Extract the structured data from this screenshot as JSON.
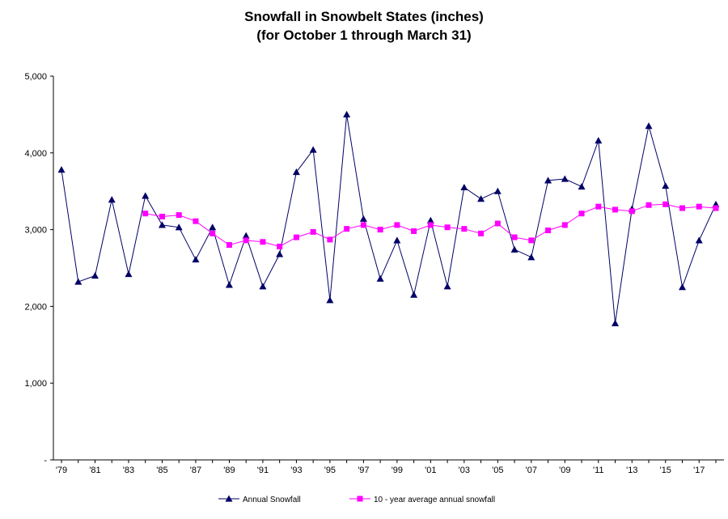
{
  "chart_data": {
    "type": "line",
    "title": "Snowfall in Snowbelt States (inches)",
    "subtitle": "(for October 1 through March 31)",
    "xlabel": "",
    "ylabel": "",
    "ylim": [
      0,
      5000
    ],
    "y_ticks": [
      {
        "value": 0,
        "label": "-"
      },
      {
        "value": 1000,
        "label": "1,000"
      },
      {
        "value": 2000,
        "label": "2,000"
      },
      {
        "value": 3000,
        "label": "3,000"
      },
      {
        "value": 4000,
        "label": "4,000"
      },
      {
        "value": 5000,
        "label": "5,000"
      }
    ],
    "x": [
      1979,
      1980,
      1981,
      1982,
      1983,
      1984,
      1985,
      1986,
      1987,
      1988,
      1989,
      1990,
      1991,
      1992,
      1993,
      1994,
      1995,
      1996,
      1997,
      1998,
      1999,
      2000,
      2001,
      2002,
      2003,
      2004,
      2005,
      2006,
      2007,
      2008,
      2009,
      2010,
      2011,
      2012,
      2013,
      2014,
      2015,
      2016,
      2017,
      2018
    ],
    "x_ticks": [
      {
        "x": 1979,
        "label": "'79"
      },
      {
        "x": 1981,
        "label": "'81"
      },
      {
        "x": 1983,
        "label": "'83"
      },
      {
        "x": 1985,
        "label": "'85"
      },
      {
        "x": 1987,
        "label": "'87"
      },
      {
        "x": 1989,
        "label": "'89"
      },
      {
        "x": 1991,
        "label": "'91"
      },
      {
        "x": 1993,
        "label": "'93"
      },
      {
        "x": 1995,
        "label": "'95"
      },
      {
        "x": 1997,
        "label": "'97"
      },
      {
        "x": 1999,
        "label": "'99"
      },
      {
        "x": 2001,
        "label": "'01"
      },
      {
        "x": 2003,
        "label": "'03"
      },
      {
        "x": 2005,
        "label": "'05"
      },
      {
        "x": 2007,
        "label": "'07"
      },
      {
        "x": 2009,
        "label": "'09"
      },
      {
        "x": 2011,
        "label": "'11"
      },
      {
        "x": 2013,
        "label": "'13"
      },
      {
        "x": 2015,
        "label": "'15"
      },
      {
        "x": 2017,
        "label": "'17"
      }
    ],
    "grid": false,
    "legend_position": "bottom",
    "series": [
      {
        "name": "Annual Snowfall",
        "color": "#000066",
        "marker": "triangle",
        "values": [
          3780,
          2320,
          2400,
          3390,
          2420,
          3440,
          3060,
          3030,
          2610,
          3030,
          2280,
          2920,
          2260,
          2680,
          3750,
          4040,
          2080,
          4500,
          3140,
          2360,
          2860,
          2150,
          3120,
          2260,
          3550,
          3400,
          3500,
          2740,
          2640,
          3640,
          3660,
          3560,
          4160,
          1780,
          3270,
          4350,
          3570,
          2250,
          2860,
          3330
        ]
      },
      {
        "name": "10 - year average annual snowfall",
        "color": "#ff00ff",
        "marker": "square",
        "values": [
          null,
          null,
          null,
          null,
          null,
          3210,
          3170,
          3190,
          3110,
          2950,
          2800,
          2860,
          2840,
          2780,
          2900,
          2970,
          2870,
          3010,
          3060,
          3000,
          3060,
          2980,
          3060,
          3030,
          3010,
          2950,
          3080,
          2900,
          2860,
          2990,
          3060,
          3210,
          3300,
          3260,
          3240,
          3320,
          3330,
          3280,
          3300,
          3280
        ]
      }
    ]
  }
}
